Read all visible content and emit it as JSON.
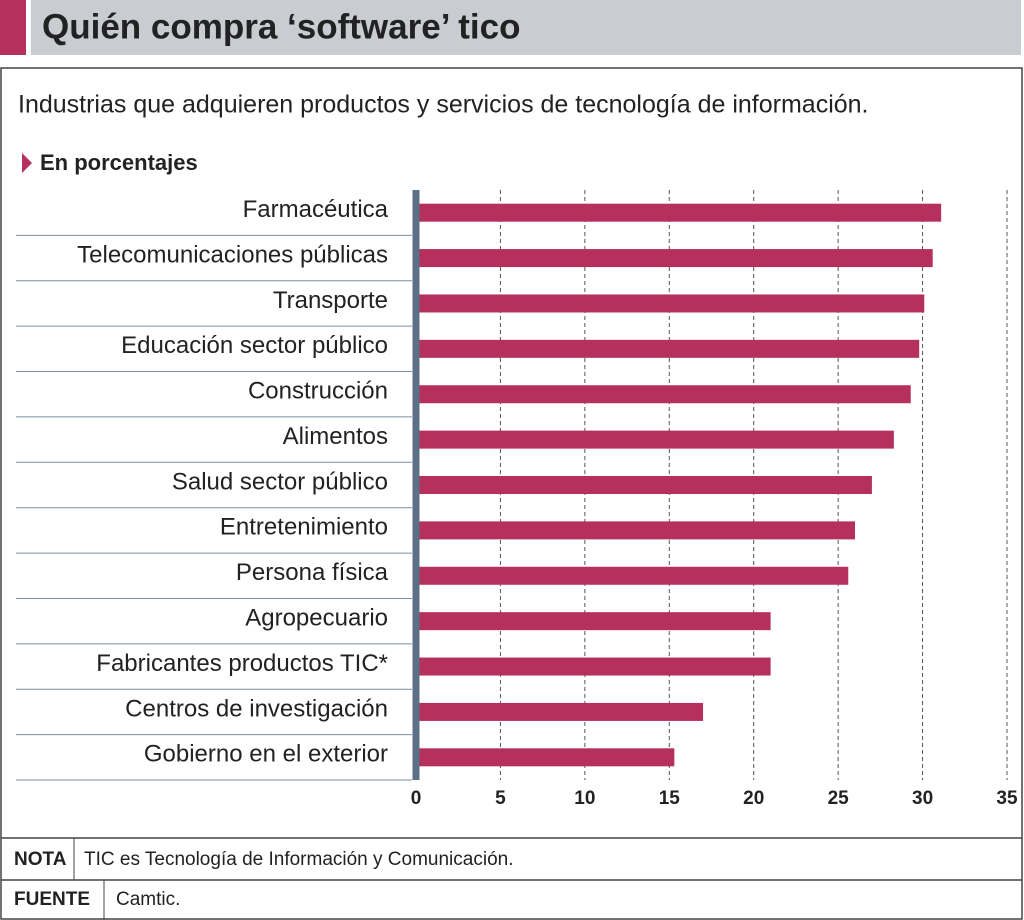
{
  "chart_data": {
    "type": "hbar",
    "title": "Quién compra ‘software’ tico",
    "subtitle": "Industrias que adquieren productos y servicios de tecnología de información.",
    "unit_label": "En porcentajes",
    "categories": [
      "Farmacéutica",
      "Telecomunicaciones públicas",
      "Transporte",
      "Educación sector público",
      "Construcción",
      "Alimentos",
      "Salud sector público",
      "Entretenimiento",
      "Persona física",
      "Agropecuario",
      "Fabricantes productos TIC*",
      "Centros de investigación",
      "Gobierno en el exterior"
    ],
    "values": [
      31.1,
      30.6,
      30.1,
      29.8,
      29.3,
      28.3,
      27.0,
      26.0,
      25.6,
      21.0,
      21.0,
      17.0,
      15.3
    ],
    "color": "#b5305c",
    "xlim": [
      0,
      35
    ],
    "xticks": [
      0,
      5,
      10,
      15,
      20,
      25,
      30,
      35
    ],
    "grid": true,
    "note": {
      "label": "NOTA",
      "text": "TIC es Tecnología de Información y Comunicación."
    },
    "source": {
      "label": "FUENTE",
      "text": "Camtic."
    }
  }
}
